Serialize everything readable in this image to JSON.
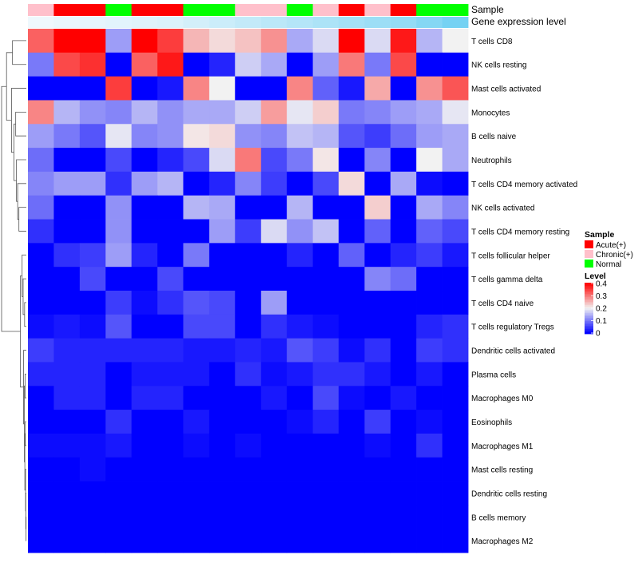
{
  "chart_data": {
    "type": "heatmap",
    "title": "",
    "annotation_tracks": [
      {
        "name": "Sample",
        "label": "Sample"
      },
      {
        "name": "Gene expression level",
        "label": "Gene expression level"
      }
    ],
    "columns": [
      {
        "sample": "Chronic(+)",
        "gene_level": 0.02
      },
      {
        "sample": "Acute(+)",
        "gene_level": 0.05
      },
      {
        "sample": "Acute(+)",
        "gene_level": 0.08
      },
      {
        "sample": "Normal",
        "gene_level": 0.1
      },
      {
        "sample": "Acute(+)",
        "gene_level": 0.12
      },
      {
        "sample": "Acute(+)",
        "gene_level": 0.15
      },
      {
        "sample": "Normal",
        "gene_level": 0.2
      },
      {
        "sample": "Normal",
        "gene_level": 0.25
      },
      {
        "sample": "Chronic(+)",
        "gene_level": 0.3
      },
      {
        "sample": "Chronic(+)",
        "gene_level": 0.35
      },
      {
        "sample": "Normal",
        "gene_level": 0.4
      },
      {
        "sample": "Chronic(+)",
        "gene_level": 0.45
      },
      {
        "sample": "Acute(+)",
        "gene_level": 0.5
      },
      {
        "sample": "Chronic(+)",
        "gene_level": 0.55
      },
      {
        "sample": "Acute(+)",
        "gene_level": 0.6
      },
      {
        "sample": "Normal",
        "gene_level": 0.7
      },
      {
        "sample": "Normal",
        "gene_level": 0.8
      }
    ],
    "rows": [
      "T cells CD8",
      "NK cells resting",
      "Mast cells activated",
      "Monocytes",
      "B cells naive",
      "Neutrophils",
      "T cells CD4 memory activated",
      "NK cells activated",
      "T cells CD4 memory resting",
      "T cells follicular helper",
      "T cells gamma delta",
      "T cells CD4 naive",
      "T cells regulatory  Tregs",
      "Dendritic cells activated",
      "Plasma cells",
      "Macrophages M0",
      "Eosinophils",
      "Macrophages M1",
      "Mast cells resting",
      "Dendritic cells resting",
      "B cells memory",
      "Macrophages M2"
    ],
    "values": [
      [
        0.32,
        0.4,
        0.4,
        0.13,
        0.4,
        0.35,
        0.25,
        0.22,
        0.24,
        0.28,
        0.14,
        0.18,
        0.4,
        0.18,
        0.38,
        0.15,
        0.2
      ],
      [
        0.1,
        0.34,
        0.36,
        0.0,
        0.32,
        0.38,
        0.0,
        0.03,
        0.17,
        0.14,
        0.0,
        0.13,
        0.3,
        0.1,
        0.34,
        0.0,
        0.0
      ],
      [
        0.0,
        0.0,
        0.0,
        0.35,
        0.0,
        0.02,
        0.29,
        0.2,
        0.0,
        0.0,
        0.29,
        0.08,
        0.02,
        0.26,
        0.0,
        0.28,
        0.33
      ],
      [
        0.29,
        0.15,
        0.12,
        0.11,
        0.15,
        0.12,
        0.14,
        0.14,
        0.17,
        0.27,
        0.19,
        0.23,
        0.1,
        0.11,
        0.13,
        0.14,
        0.19
      ],
      [
        0.13,
        0.1,
        0.07,
        0.19,
        0.11,
        0.12,
        0.21,
        0.22,
        0.12,
        0.11,
        0.16,
        0.15,
        0.07,
        0.05,
        0.09,
        0.13,
        0.14
      ],
      [
        0.09,
        0.0,
        0.0,
        0.06,
        0.0,
        0.03,
        0.06,
        0.18,
        0.3,
        0.06,
        0.1,
        0.21,
        0.0,
        0.11,
        0.0,
        0.2,
        0.14
      ],
      [
        0.11,
        0.13,
        0.13,
        0.04,
        0.13,
        0.15,
        0.0,
        0.03,
        0.11,
        0.05,
        0.0,
        0.06,
        0.22,
        0.0,
        0.14,
        0.01,
        0.0
      ],
      [
        0.09,
        0.0,
        0.0,
        0.12,
        0.0,
        0.0,
        0.15,
        0.14,
        0.0,
        0.0,
        0.15,
        0.0,
        0.0,
        0.23,
        0.0,
        0.14,
        0.11
      ],
      [
        0.04,
        0.0,
        0.0,
        0.12,
        0.0,
        0.0,
        0.0,
        0.13,
        0.05,
        0.18,
        0.12,
        0.16,
        0.0,
        0.08,
        0.0,
        0.08,
        0.06
      ],
      [
        0.0,
        0.04,
        0.05,
        0.13,
        0.03,
        0.0,
        0.1,
        0.0,
        0.0,
        0.0,
        0.03,
        0.0,
        0.08,
        0.0,
        0.03,
        0.05,
        0.02
      ],
      [
        0.0,
        0.0,
        0.06,
        0.0,
        0.0,
        0.06,
        0.0,
        0.0,
        0.0,
        0.0,
        0.0,
        0.0,
        0.0,
        0.11,
        0.09,
        0.0,
        0.0
      ],
      [
        0.0,
        0.0,
        0.0,
        0.05,
        0.01,
        0.04,
        0.07,
        0.06,
        0.0,
        0.13,
        0.0,
        0.0,
        0.0,
        0.0,
        0.0,
        0.0,
        0.0
      ],
      [
        0.01,
        0.02,
        0.01,
        0.07,
        0.0,
        0.0,
        0.06,
        0.06,
        0.0,
        0.04,
        0.02,
        0.01,
        0.0,
        0.0,
        0.0,
        0.03,
        0.04
      ],
      [
        0.05,
        0.03,
        0.03,
        0.03,
        0.03,
        0.03,
        0.02,
        0.02,
        0.03,
        0.02,
        0.07,
        0.05,
        0.01,
        0.04,
        0.0,
        0.05,
        0.04
      ],
      [
        0.03,
        0.03,
        0.03,
        0.0,
        0.02,
        0.02,
        0.02,
        0.0,
        0.04,
        0.01,
        0.02,
        0.04,
        0.04,
        0.02,
        0.0,
        0.02,
        0.0
      ],
      [
        0.0,
        0.03,
        0.03,
        0.0,
        0.03,
        0.03,
        0.0,
        0.0,
        0.0,
        0.02,
        0.0,
        0.06,
        0.01,
        0.0,
        0.02,
        0.0,
        0.0
      ],
      [
        0.0,
        0.0,
        0.0,
        0.04,
        0.0,
        0.0,
        0.02,
        0.0,
        0.0,
        0.0,
        0.01,
        0.03,
        0.0,
        0.05,
        0.0,
        0.01,
        0.0
      ],
      [
        0.01,
        0.01,
        0.01,
        0.02,
        0.0,
        0.0,
        0.01,
        0.0,
        0.01,
        0.0,
        0.0,
        0.0,
        0.0,
        0.01,
        0.0,
        0.04,
        0.0
      ],
      [
        0.0,
        0.0,
        0.01,
        0.0,
        0.0,
        0.0,
        0.0,
        0.0,
        0.0,
        0.0,
        0.0,
        0.0,
        0.0,
        0.0,
        0.0,
        0.0,
        0.0
      ],
      [
        0.0,
        0.0,
        0.0,
        0.0,
        0.0,
        0.0,
        0.0,
        0.0,
        0.0,
        0.0,
        0.0,
        0.0,
        0.0,
        0.0,
        0.0,
        0.0,
        0.0
      ],
      [
        0.0,
        0.0,
        0.0,
        0.0,
        0.0,
        0.0,
        0.0,
        0.0,
        0.0,
        0.0,
        0.0,
        0.0,
        0.0,
        0.0,
        0.0,
        0.0,
        0.0
      ],
      [
        0.0,
        0.0,
        0.0,
        0.0,
        0.0,
        0.0,
        0.0,
        0.0,
        0.0,
        0.0,
        0.0,
        0.0,
        0.0,
        0.0,
        0.0,
        0.0,
        0.0
      ]
    ],
    "dendrogram": [
      [
        20,
        21,
        0.01
      ],
      [
        19,
        -1,
        0.02
      ],
      [
        18,
        -2,
        0.03
      ],
      [
        16,
        17,
        0.04
      ],
      [
        -3,
        -4,
        0.06
      ],
      [
        14,
        15,
        0.05
      ],
      [
        -6,
        -5,
        0.08
      ],
      [
        13,
        -7,
        0.11
      ],
      [
        11,
        12,
        0.07
      ],
      [
        10,
        -9,
        0.13
      ],
      [
        9,
        -10,
        0.17
      ],
      [
        -8,
        -11,
        0.24
      ],
      [
        7,
        8,
        0.3
      ],
      [
        6,
        -13,
        0.35
      ],
      [
        5,
        -14,
        0.4
      ],
      [
        4,
        3,
        0.43
      ],
      [
        -16,
        -15,
        0.5
      ],
      [
        2,
        -17,
        0.6
      ],
      [
        0,
        1,
        0.56
      ],
      [
        -19,
        -18,
        0.8
      ],
      [
        -20,
        -12,
        1.0
      ]
    ],
    "color_scale": {
      "min": 0,
      "max": 0.4,
      "low": "#0000FF",
      "mid": "#F2F2F2",
      "high": "#FF0000",
      "mid_value": 0.2
    },
    "gene_level_colors": {
      "low": "#F2F9FD",
      "high": "#56C8F0"
    },
    "legends": {
      "sample": {
        "title": "Sample",
        "entries": [
          {
            "label": "Acute(+)",
            "color": "#FF0000"
          },
          {
            "label": "Chronic(+)",
            "color": "#FFC0CB"
          },
          {
            "label": "Normal",
            "color": "#00FF00"
          }
        ]
      },
      "level": {
        "title": "Level",
        "ticks": [
          "0.4",
          "0.3",
          "0.2",
          "0.1",
          "0"
        ]
      }
    }
  }
}
